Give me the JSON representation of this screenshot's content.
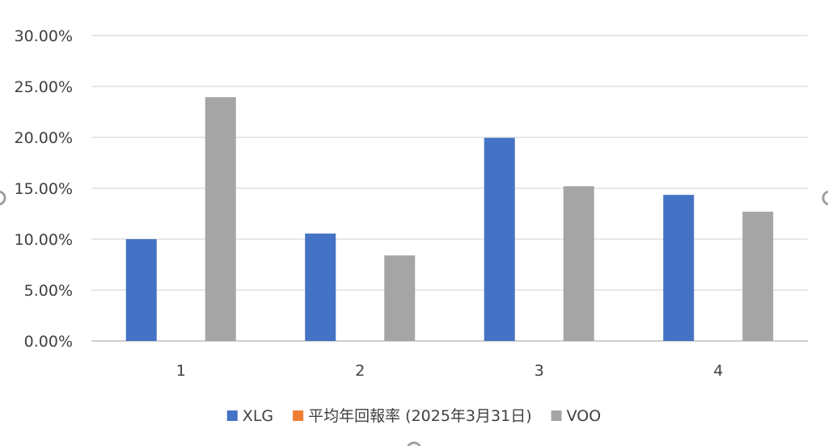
{
  "chart_data": {
    "type": "bar",
    "title": "",
    "xlabel": "",
    "ylabel": "",
    "categories": [
      "1",
      "2",
      "3",
      "4"
    ],
    "ylim": [
      0,
      30
    ],
    "yticks": [
      "0.00%",
      "5.00%",
      "10.00%",
      "15.00%",
      "20.00%",
      "25.00%",
      "30.00%"
    ],
    "grid": true,
    "legend_position": "bottom",
    "series": [
      {
        "name": "XLG",
        "color": "#4472C4",
        "values": [
          10.0,
          10.55,
          19.95,
          14.35
        ]
      },
      {
        "name": "平均年回報率 (2025年3月31日)",
        "color": "#ED7D31",
        "values": [
          0,
          0,
          0,
          0
        ]
      },
      {
        "name": "VOO",
        "color": "#A5A5A5",
        "values": [
          23.95,
          8.4,
          15.2,
          12.7
        ]
      }
    ]
  }
}
